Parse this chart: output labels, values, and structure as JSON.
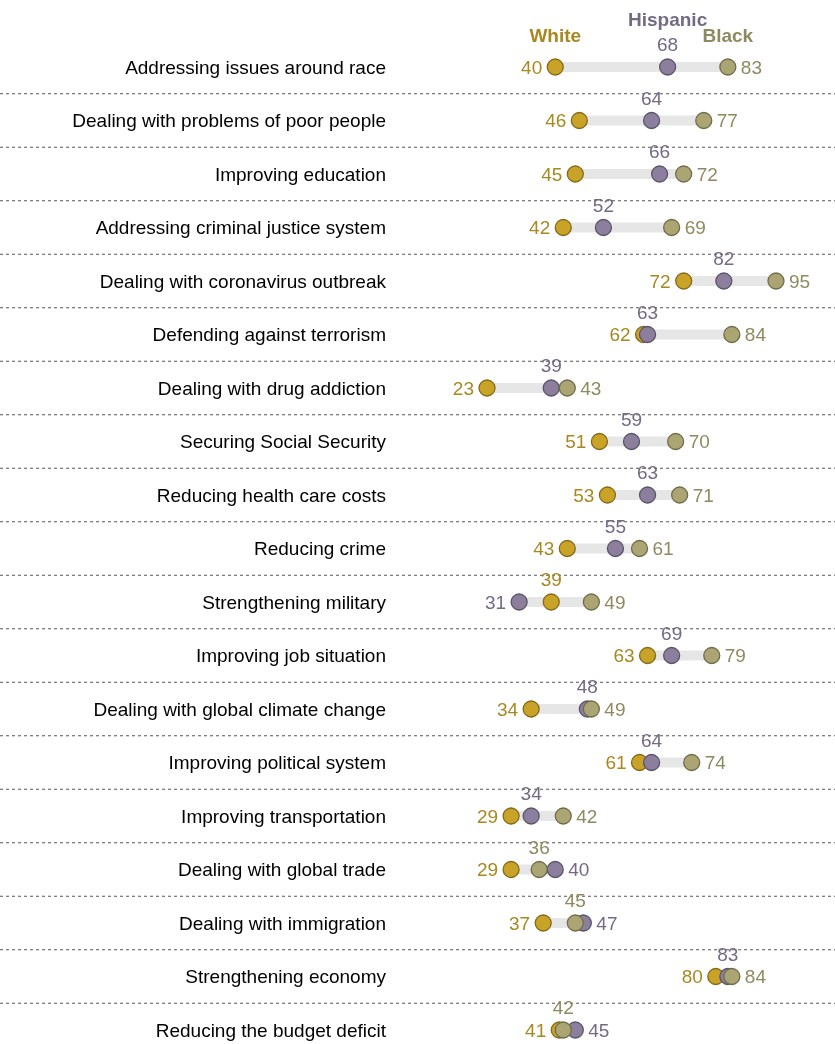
{
  "chart_data": {
    "type": "scatter",
    "orientation": "horizontal",
    "legend": "top",
    "data_labels": true,
    "marker": "circle",
    "categories": [
      "Addressing issues around race",
      "Dealing with problems of poor people",
      "Improving education",
      "Addressing criminal justice system",
      "Dealing with coronavirus outbreak",
      "Defending against terrorism",
      "Dealing with drug addiction",
      "Securing Social Security",
      "Reducing health care costs",
      "Reducing crime",
      "Strengthening military",
      "Improving job situation",
      "Dealing with global climate change",
      "Improving political system",
      "Improving transportation",
      "Dealing with global trade",
      "Dealing with immigration",
      "Strengthening economy",
      "Reducing the budget deficit"
    ],
    "series": [
      {
        "name": "White",
        "color": "#c9a228",
        "values": [
          40,
          46,
          45,
          42,
          72,
          62,
          23,
          51,
          53,
          43,
          39,
          63,
          34,
          61,
          29,
          29,
          37,
          80,
          41
        ]
      },
      {
        "name": "Hispanic",
        "color": "#8c7f9e",
        "values": [
          68,
          64,
          66,
          52,
          82,
          63,
          39,
          59,
          63,
          55,
          31,
          69,
          48,
          64,
          34,
          40,
          47,
          83,
          45
        ]
      },
      {
        "name": "Black",
        "color": "#aaa573",
        "values": [
          83,
          77,
          72,
          69,
          95,
          84,
          43,
          70,
          71,
          61,
          49,
          79,
          49,
          74,
          42,
          36,
          45,
          84,
          42
        ]
      }
    ]
  }
}
